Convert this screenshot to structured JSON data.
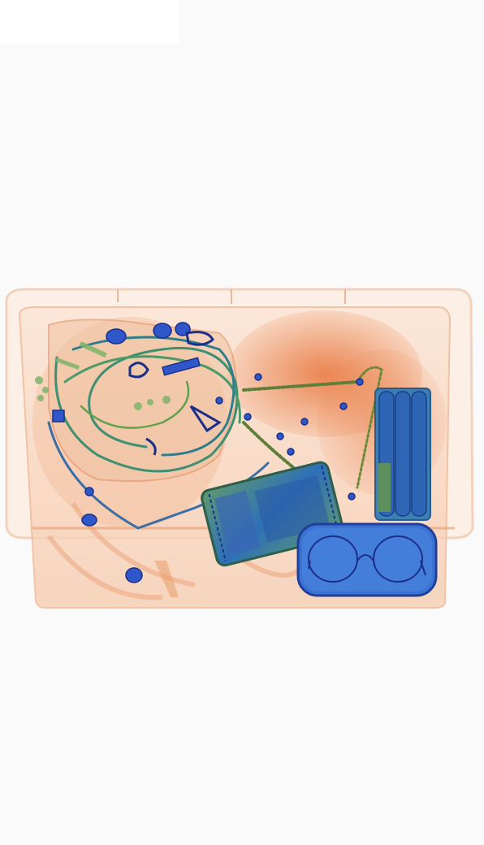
{
  "image": {
    "kind": "x-ray baggage scan",
    "colors": {
      "background": "#fafafa",
      "tray_outline": "#f0c3a3",
      "organic": "#e8753b",
      "mixed": "#7fb36a",
      "metal": "#2f57c9",
      "metal_dark": "#1b2f8a"
    },
    "objects": [
      "plastic-tray",
      "clothing-bundle",
      "cable-tangle",
      "zip-ties",
      "phone-device",
      "battery-pack",
      "glasses-case",
      "eyeglasses",
      "small-metal-parts"
    ]
  }
}
